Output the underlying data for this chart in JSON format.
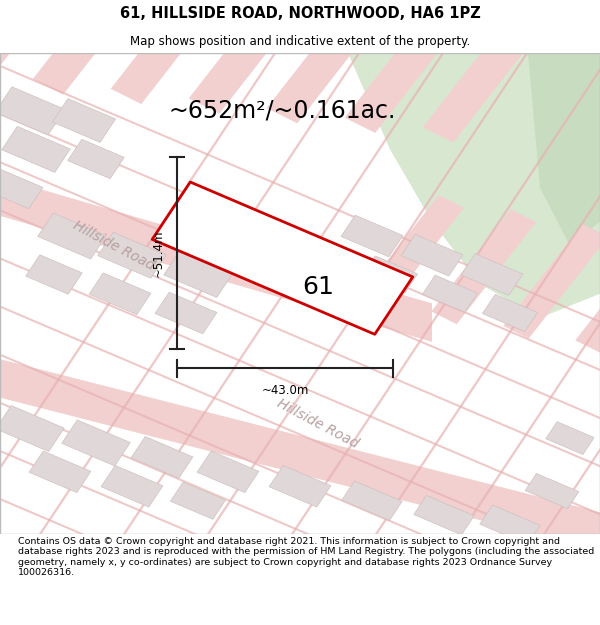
{
  "title": "61, HILLSIDE ROAD, NORTHWOOD, HA6 1PZ",
  "subtitle": "Map shows position and indicative extent of the property.",
  "area_label": "~652m²/~0.161ac.",
  "property_number": "61",
  "dim_vertical": "~51.4m",
  "dim_horizontal": "~43.0m",
  "footer": "Contains OS data © Crown copyright and database right 2021. This information is subject to Crown copyright and database rights 2023 and is reproduced with the permission of HM Land Registry. The polygons (including the associated geometry, namely x, y co-ordinates) are subject to Crown copyright and database rights 2023 Ordnance Survey 100026316.",
  "map_bg": "#ffffff",
  "road_color": "#f2d0d0",
  "road_line_color": "#e8b0b0",
  "road_label_color": "#b8a0a0",
  "block_color": "#e0d8d8",
  "block_edge_color": "#d0c0c0",
  "property_fill": "#ffffff",
  "property_edge": "#cc0000",
  "green1_color": "#d8e8d0",
  "green2_color": "#c8dcc0",
  "dim_color": "#222222",
  "title_fontsize": 10.5,
  "subtitle_fontsize": 8.5,
  "area_fontsize": 17,
  "property_label_fontsize": 18,
  "dim_fontsize": 8.5,
  "road_label_fontsize": 10,
  "footer_fontsize": 6.8
}
